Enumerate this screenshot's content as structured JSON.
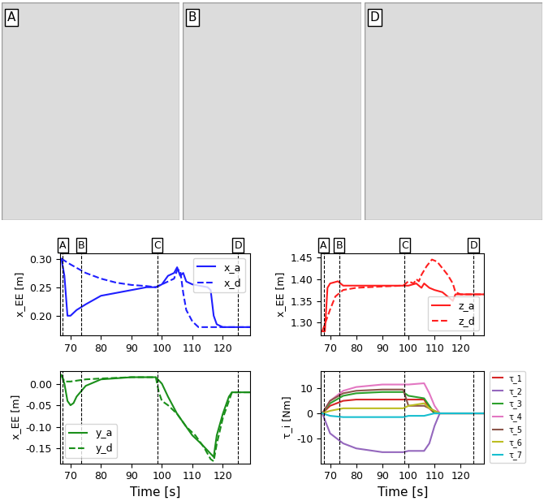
{
  "photos": {
    "panels": [
      "A",
      "B",
      "D"
    ]
  },
  "chart_data": [
    {
      "type": "line",
      "y_label": "x_EE [m]",
      "xlim": [
        66.5,
        129
      ],
      "xticks": [
        70,
        80,
        90,
        100,
        110,
        120
      ],
      "ylim": [
        0.165,
        0.31
      ],
      "yticks": [
        {
          "value": 0.2,
          "label": "0.20"
        },
        {
          "value": 0.25,
          "label": "0.25"
        },
        {
          "value": 0.3,
          "label": "0.30"
        }
      ],
      "legend": "upper right",
      "annotations": [
        {
          "x": 67.5,
          "label": "A"
        },
        {
          "x": 73.5,
          "label": "B"
        },
        {
          "x": 98.5,
          "label": "C"
        },
        {
          "x": 125,
          "label": "D"
        }
      ],
      "series": [
        {
          "name": "x_a",
          "color": "#1f1fff",
          "line_style": "solid",
          "x": [
            67,
            68,
            69,
            70,
            72,
            75,
            80,
            85,
            90,
            95,
            98,
            100,
            102,
            104,
            105,
            106,
            107,
            108,
            110,
            115,
            116,
            117,
            118,
            120,
            129
          ],
          "values": [
            0.3,
            0.27,
            0.2,
            0.2,
            0.21,
            0.22,
            0.235,
            0.24,
            0.245,
            0.25,
            0.25,
            0.255,
            0.27,
            0.275,
            0.285,
            0.27,
            0.275,
            0.26,
            0.255,
            0.25,
            0.245,
            0.2,
            0.185,
            0.18,
            0.18
          ]
        },
        {
          "name": "x_d",
          "color": "#1f1fff",
          "line_style": "dashed",
          "x": [
            67,
            70,
            75,
            80,
            85,
            90,
            95,
            98,
            100,
            102,
            104,
            105,
            106,
            107,
            108,
            110,
            112,
            115,
            129
          ],
          "values": [
            0.3,
            0.29,
            0.275,
            0.265,
            0.258,
            0.254,
            0.252,
            0.25,
            0.255,
            0.26,
            0.265,
            0.28,
            0.28,
            0.24,
            0.21,
            0.19,
            0.18,
            0.18,
            0.18
          ]
        }
      ]
    },
    {
      "type": "line",
      "y_label": "x_EE [m]",
      "xlim": [
        66.5,
        129
      ],
      "xticks": [
        70,
        80,
        90,
        100,
        110,
        120
      ],
      "ylim": [
        1.27,
        1.46
      ],
      "yticks": [
        {
          "value": 1.3,
          "label": "1.30"
        },
        {
          "value": 1.35,
          "label": "1.35"
        },
        {
          "value": 1.4,
          "label": "1.40"
        },
        {
          "value": 1.45,
          "label": "1.45"
        }
      ],
      "legend": "lower right",
      "annotations": [
        {
          "x": 67.5,
          "label": "A"
        },
        {
          "x": 73.5,
          "label": "B"
        },
        {
          "x": 98.5,
          "label": "C"
        },
        {
          "x": 125,
          "label": "D"
        }
      ],
      "series": [
        {
          "name": "z_a",
          "color": "#ff1f1f",
          "line_style": "solid",
          "x": [
            67,
            68,
            69,
            70,
            73,
            75,
            80,
            90,
            100,
            103,
            105,
            106,
            108,
            110,
            113,
            115,
            117,
            118,
            120,
            129
          ],
          "values": [
            1.28,
            1.28,
            1.38,
            1.39,
            1.395,
            1.385,
            1.385,
            1.385,
            1.385,
            1.39,
            1.38,
            1.39,
            1.38,
            1.375,
            1.37,
            1.36,
            1.35,
            1.365,
            1.365,
            1.365
          ]
        },
        {
          "name": "z_d",
          "color": "#ff1f1f",
          "line_style": "dashed",
          "x": [
            67,
            70,
            72,
            75,
            80,
            90,
            98,
            100,
            102,
            103,
            104,
            105,
            107,
            109,
            111,
            113,
            115,
            117,
            118,
            120,
            129
          ],
          "values": [
            1.28,
            1.33,
            1.36,
            1.375,
            1.38,
            1.383,
            1.385,
            1.395,
            1.39,
            1.4,
            1.395,
            1.41,
            1.43,
            1.445,
            1.44,
            1.425,
            1.41,
            1.39,
            1.37,
            1.365,
            1.365
          ]
        }
      ]
    },
    {
      "type": "line",
      "x_label": "Time [s]",
      "y_label": "x_EE [m]",
      "xlim": [
        66.5,
        129
      ],
      "xticks": [
        70,
        80,
        90,
        100,
        110,
        120
      ],
      "ylim": [
        -0.185,
        0.03
      ],
      "yticks": [
        {
          "value": -0.15,
          "label": "-0.15"
        },
        {
          "value": -0.1,
          "label": "-0.10"
        },
        {
          "value": -0.05,
          "label": "-0.05"
        },
        {
          "value": 0.0,
          "label": "0.00"
        }
      ],
      "legend": "lower left",
      "vlines": [
        67.5,
        73.5,
        98.5,
        125
      ],
      "series": [
        {
          "name": "y_a",
          "color": "#1a8f1a",
          "line_style": "solid",
          "x": [
            67,
            68,
            69,
            70,
            71,
            72,
            75,
            80,
            90,
            98,
            100,
            102,
            105,
            108,
            110,
            113,
            115,
            117,
            118,
            120,
            122,
            123,
            129
          ],
          "values": [
            0.02,
            0.0,
            -0.04,
            -0.05,
            -0.045,
            -0.03,
            -0.005,
            0.01,
            0.015,
            0.015,
            0.0,
            -0.03,
            -0.07,
            -0.1,
            -0.12,
            -0.14,
            -0.155,
            -0.17,
            -0.12,
            -0.07,
            -0.03,
            -0.02,
            -0.02
          ]
        },
        {
          "name": "y_d",
          "color": "#1a8f1a",
          "line_style": "dashed",
          "x": [
            67,
            68,
            70,
            75,
            80,
            90,
            98,
            99,
            100,
            102,
            105,
            108,
            111,
            114,
            116,
            117,
            118,
            120,
            122,
            123,
            129
          ],
          "values": [
            0.02,
            0.005,
            0.005,
            0.01,
            0.012,
            0.015,
            0.015,
            -0.02,
            -0.04,
            -0.05,
            -0.07,
            -0.1,
            -0.12,
            -0.15,
            -0.175,
            -0.18,
            -0.14,
            -0.08,
            -0.04,
            -0.02,
            -0.02
          ]
        }
      ]
    },
    {
      "type": "line",
      "x_label": "Time [s]",
      "y_label": "τ_i [Nm]",
      "xlim": [
        66.5,
        129
      ],
      "xticks": [
        70,
        80,
        90,
        100,
        110,
        120
      ],
      "ylim": [
        -20,
        17
      ],
      "yticks": [
        -10,
        0,
        10
      ],
      "legend": "right",
      "vlines": [
        67.5,
        73.5,
        98.5,
        125
      ],
      "x": [
        67,
        70,
        75,
        80,
        90,
        98,
        100,
        106,
        108,
        110,
        112,
        129
      ],
      "series": [
        {
          "name": "τ_1",
          "color": "#d62728",
          "line_style": "solid",
          "values": [
            0,
            3,
            5,
            5.5,
            5.5,
            5.5,
            5.5,
            5.5,
            2,
            0,
            0,
            0
          ]
        },
        {
          "name": "τ_2",
          "color": "#9467bd",
          "line_style": "solid",
          "values": [
            0,
            -8,
            -12,
            -14,
            -15.5,
            -15.5,
            -15,
            -15,
            -12,
            -5,
            0,
            0
          ]
        },
        {
          "name": "τ_3",
          "color": "#2ca02c",
          "line_style": "solid",
          "values": [
            0,
            4,
            7,
            8,
            8.5,
            8.5,
            7,
            6,
            3,
            0,
            0,
            0
          ]
        },
        {
          "name": "τ_4",
          "color": "#e377c2",
          "line_style": "solid",
          "values": [
            0,
            5,
            9,
            10.5,
            11.5,
            11.5,
            11.5,
            12,
            8,
            3,
            0,
            0
          ]
        },
        {
          "name": "τ_5",
          "color": "#8c564b",
          "line_style": "solid",
          "values": [
            0,
            5,
            8,
            9,
            9.5,
            9.5,
            3,
            3,
            2,
            1,
            0,
            0
          ]
        },
        {
          "name": "τ_6",
          "color": "#bcbd22",
          "line_style": "solid",
          "values": [
            0,
            1,
            2,
            2,
            2,
            2,
            3,
            4,
            2,
            1,
            0,
            0
          ]
        },
        {
          "name": "τ_7",
          "color": "#17becf",
          "line_style": "solid",
          "values": [
            0,
            -1,
            -1.5,
            -1.5,
            -1.5,
            -1.5,
            -1,
            -1,
            -0.5,
            0,
            0,
            0
          ]
        }
      ]
    }
  ]
}
